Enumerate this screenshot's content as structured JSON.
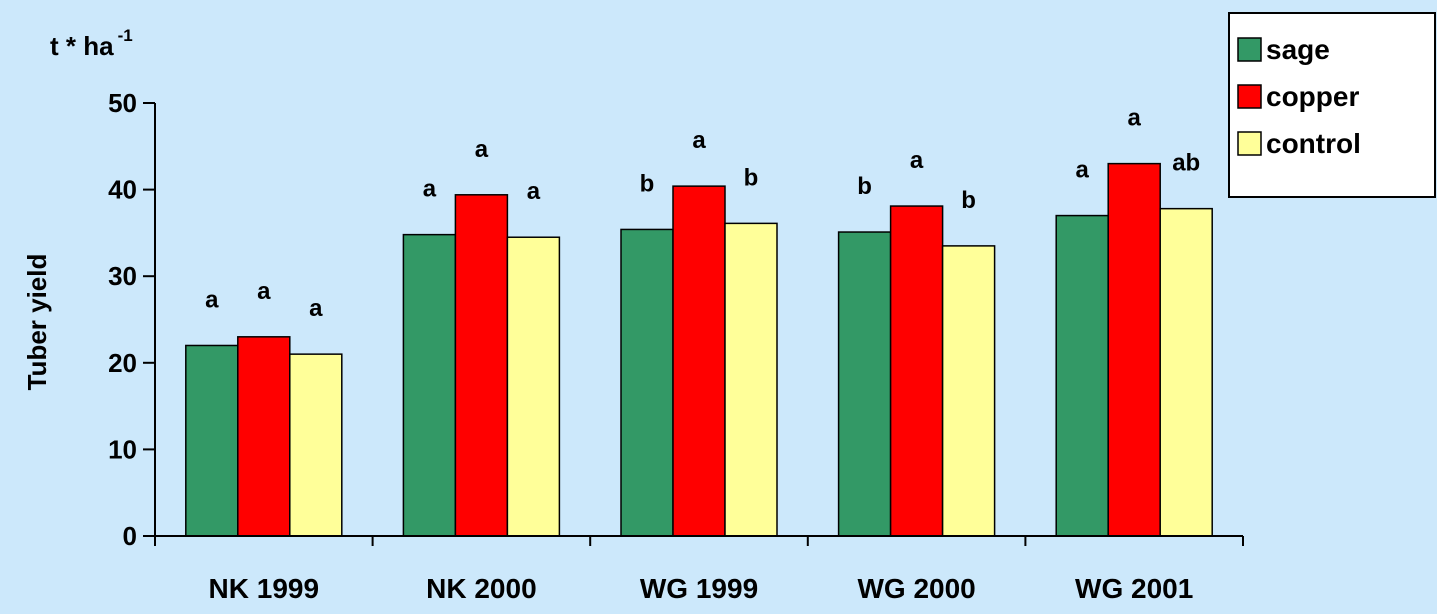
{
  "chart_data": {
    "type": "bar",
    "unit_label": "t * ha",
    "unit_superscript": "-1",
    "ylabel": "Tuber yield",
    "xlabel": "",
    "ylim": [
      0,
      50
    ],
    "yticks": [
      "0",
      "10",
      "20",
      "30",
      "40",
      "50"
    ],
    "categories": [
      "NK 1999",
      "NK 2000",
      "WG 1999",
      "WG 2000",
      "WG 2001"
    ],
    "series": [
      {
        "name": "sage",
        "color": "#339966",
        "values": [
          22,
          34.8,
          35.4,
          35.1,
          37
        ],
        "labels": [
          "a",
          "a",
          "b",
          "b",
          "a"
        ]
      },
      {
        "name": "copper",
        "color": "#ff0000",
        "values": [
          23,
          39.4,
          40.4,
          38.1,
          43
        ],
        "labels": [
          "a",
          "a",
          "a",
          "a",
          "a"
        ]
      },
      {
        "name": "control",
        "color": "#ffff99",
        "values": [
          21,
          34.5,
          36.1,
          33.5,
          37.8
        ],
        "labels": [
          "a",
          "a",
          "b",
          "b",
          "ab"
        ]
      }
    ],
    "grid": false,
    "legend_position": "top-right"
  }
}
